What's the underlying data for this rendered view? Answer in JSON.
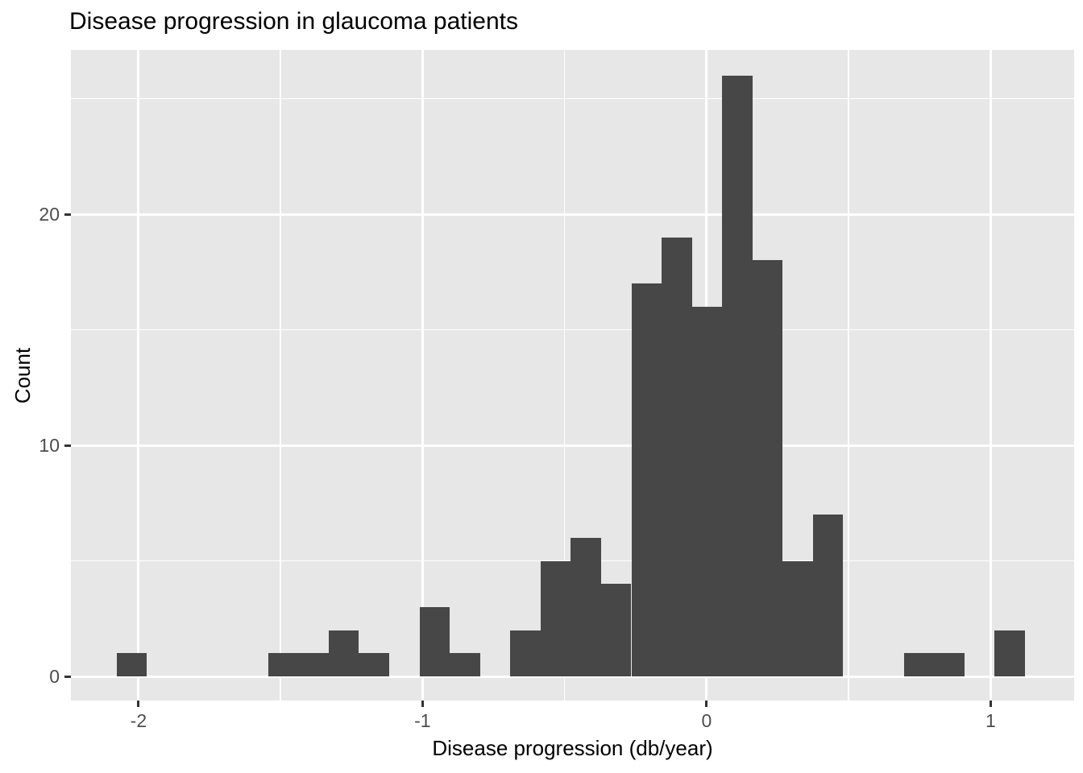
{
  "title": "Disease progression in glaucoma patients",
  "x_axis": {
    "label": "Disease progression (db/year)",
    "major_ticks": [
      -2,
      -1,
      0,
      1
    ],
    "tick_labels": [
      "-2",
      "-1",
      "0",
      "1"
    ],
    "minor_ticks": [
      -1.5,
      -0.5,
      0.5
    ]
  },
  "y_axis": {
    "label": "Count",
    "major_ticks": [
      0,
      10,
      20
    ],
    "tick_labels": [
      "0",
      "10",
      "20"
    ],
    "minor_ticks": [
      5,
      15,
      25
    ]
  },
  "colors": {
    "bar": "#474747",
    "panel_background": "#E7E7E7",
    "gridline_major": "#FFFFFF",
    "gridline_minor": "#FFFFFF",
    "tick_mark": "#333333",
    "tick_label": "#4D4D4D",
    "title": "#000000"
  },
  "chart_data": {
    "type": "bar",
    "subtype": "histogram",
    "title": "Disease progression in glaucoma patients",
    "xlabel": "Disease progression (db/year)",
    "ylabel": "Count",
    "x_domain": [
      -2.238,
      1.294
    ],
    "y_domain": [
      -1.045,
      27.108
    ],
    "grid": true,
    "legend": false,
    "bin_edges": [
      -2.0766,
      -1.97,
      -1.8635,
      -1.7569,
      -1.6503,
      -1.5437,
      -1.4372,
      -1.3306,
      -1.224,
      -1.1175,
      -1.0109,
      -0.9043,
      -0.7977,
      -0.6912,
      -0.5846,
      -0.478,
      -0.3714,
      -0.2649,
      -0.1583,
      -0.0517,
      0.0548,
      0.1614,
      0.268,
      0.3746,
      0.4811,
      0.5877,
      0.6943,
      0.8009,
      0.9074,
      1.014,
      1.1206
    ],
    "counts": [
      1,
      0,
      0,
      0,
      0,
      1,
      1,
      2,
      1,
      0,
      3,
      1,
      0,
      2,
      5,
      6,
      4,
      17,
      19,
      16,
      26,
      18,
      5,
      7,
      0,
      0,
      1,
      1,
      0,
      2
    ],
    "max_count": 26,
    "total_observations": 139
  }
}
